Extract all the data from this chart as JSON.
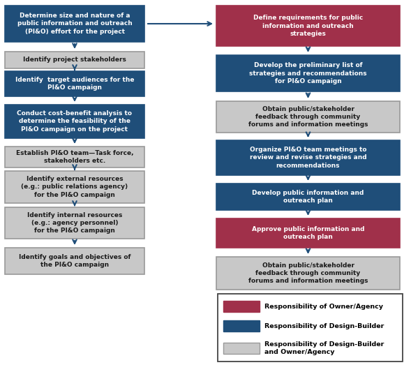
{
  "colors": {
    "owner": "#A0304A",
    "builder": "#1F4E79",
    "shared": "#C8C8C8",
    "arrow": "#1F4E79",
    "text_dark": "#1a1a1a",
    "text_white": "#FFFFFF",
    "border_shared": "#999999",
    "border_builder": "#1F4E79",
    "border_owner": "#A0304A",
    "background": "#FFFFFF",
    "legend_border": "#444444"
  },
  "left_column": [
    {
      "text": "Determine size and nature of a\npublic information and outreach\n(PI&O) effort for the project",
      "color": "builder"
    },
    {
      "text": "Identify project stakeholders",
      "color": "shared"
    },
    {
      "text": "Identify  target audiences for the\nPI&O campaign",
      "color": "builder"
    },
    {
      "text": "Conduct cost-benefit analysis to\ndetermine the feasibility of the\nPI&O campaign on the project",
      "color": "builder"
    },
    {
      "text": "Establish PI&O team—Task force,\nstakeholders etc.",
      "color": "shared"
    },
    {
      "text": "Identify external resources\n(e.g.: public relations agency)\nfor the PI&O campaign",
      "color": "shared"
    },
    {
      "text": "Identify internal resources\n(e.g.: agency personnel)\nfor the PI&O campaign",
      "color": "shared"
    },
    {
      "text": "Identify goals and objectives of\nthe PI&O campaign",
      "color": "shared"
    }
  ],
  "right_column": [
    {
      "text": "Define requirements for public\ninformation and outreach\nstrategies",
      "color": "owner"
    },
    {
      "text": "Develop the preliminary list of\nstrategies and recommendations\nfor PI&O campaign",
      "color": "builder"
    },
    {
      "text": "Obtain public/stakeholder\nfeedback through community\nforums and information meetings",
      "color": "shared"
    },
    {
      "text": "Organize PI&O team meetings to\nreview and revise strategies and\nrecommendations",
      "color": "builder"
    },
    {
      "text": "Develop public information and\noutreach plan",
      "color": "builder"
    },
    {
      "text": "Approve public information and\noutreach plan",
      "color": "owner"
    },
    {
      "text": "Obtain public/stakeholder\nfeedback through community\nforums and information meetings",
      "color": "shared"
    }
  ],
  "legend_items": [
    {
      "color": "owner",
      "label": "Responsibility of Owner/Agency"
    },
    {
      "color": "builder",
      "label": "Responsibility of Design-Builder"
    },
    {
      "color": "shared",
      "label": "Responsibility of Design-Builder\nand Owner/Agency"
    }
  ],
  "figsize": [
    5.89,
    5.23
  ],
  "dpi": 100
}
